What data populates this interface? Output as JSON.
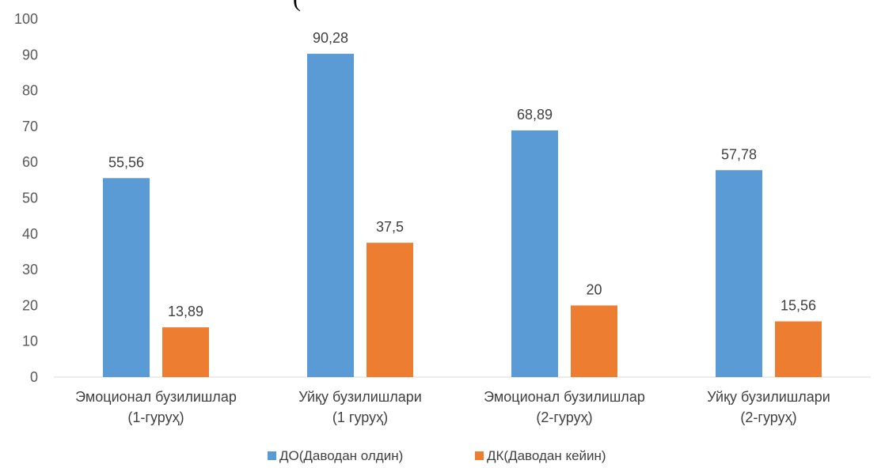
{
  "header": {
    "title_fragment": "("
  },
  "chart_data": {
    "type": "bar",
    "categories": [
      [
        "Эмоционал бузилишлар",
        "(1-гуруҳ)"
      ],
      [
        "Уйқу бузилишлари",
        "(1 гуруҳ)"
      ],
      [
        "Эмоционал бузилишлар",
        "(2-гуруҳ)"
      ],
      [
        "Уйқу бузилишлари",
        "(2-гуруҳ)"
      ]
    ],
    "series": [
      {
        "name": "ДО(Даводан олдин)",
        "color": "#5B9BD5",
        "values": [
          55.56,
          90.28,
          68.89,
          57.78
        ],
        "labels": [
          "55,56",
          "90,28",
          "68,89",
          "57,78"
        ]
      },
      {
        "name": "ДК(Даводан кейин)",
        "color": "#ED7D31",
        "values": [
          13.89,
          37.5,
          20,
          15.56
        ],
        "labels": [
          "13,89",
          "37,5",
          "20",
          "15,56"
        ]
      }
    ],
    "ylim": [
      0,
      100
    ],
    "yticks": [
      0,
      10,
      20,
      30,
      40,
      50,
      60,
      70,
      80,
      90,
      100
    ],
    "grid": false,
    "legend": "bottom-center"
  }
}
